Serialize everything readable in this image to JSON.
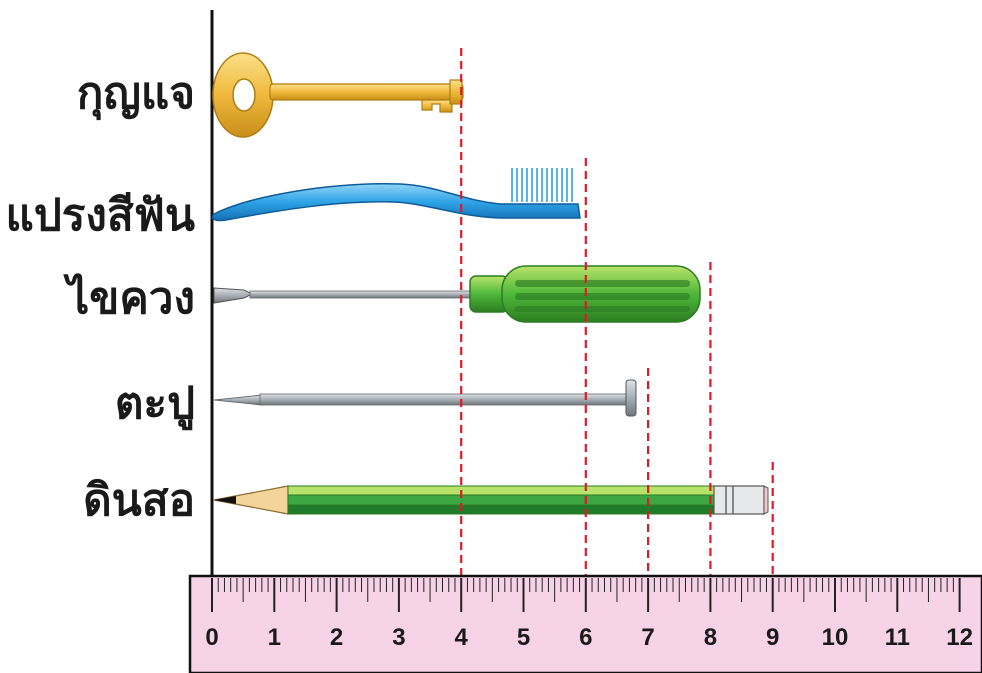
{
  "items": [
    {
      "id": "key",
      "label": "กุญแจ",
      "length": 4
    },
    {
      "id": "toothbrush",
      "label": "แปรงสีฟัน",
      "length": 6
    },
    {
      "id": "screwdriver",
      "label": "ไขควง",
      "length": 8
    },
    {
      "id": "nail",
      "label": "ตะปู",
      "length": 7
    },
    {
      "id": "pencil",
      "label": "ดินสอ",
      "length": 9
    }
  ],
  "ruler": {
    "start": 0,
    "end": 12,
    "tick_labels": [
      "0",
      "1",
      "2",
      "3",
      "4",
      "5",
      "6",
      "7",
      "8",
      "9",
      "10",
      "11",
      "12"
    ]
  },
  "colors": {
    "ruler_bg": "#f6d3e6",
    "guide_line": "#e0192a",
    "key": "#f0b93c",
    "toothbrush": "#2ea3e6",
    "screwdriver_handle": "#4fb83a",
    "metal": "#a7aeb4",
    "pencil_green": "#3da842"
  }
}
